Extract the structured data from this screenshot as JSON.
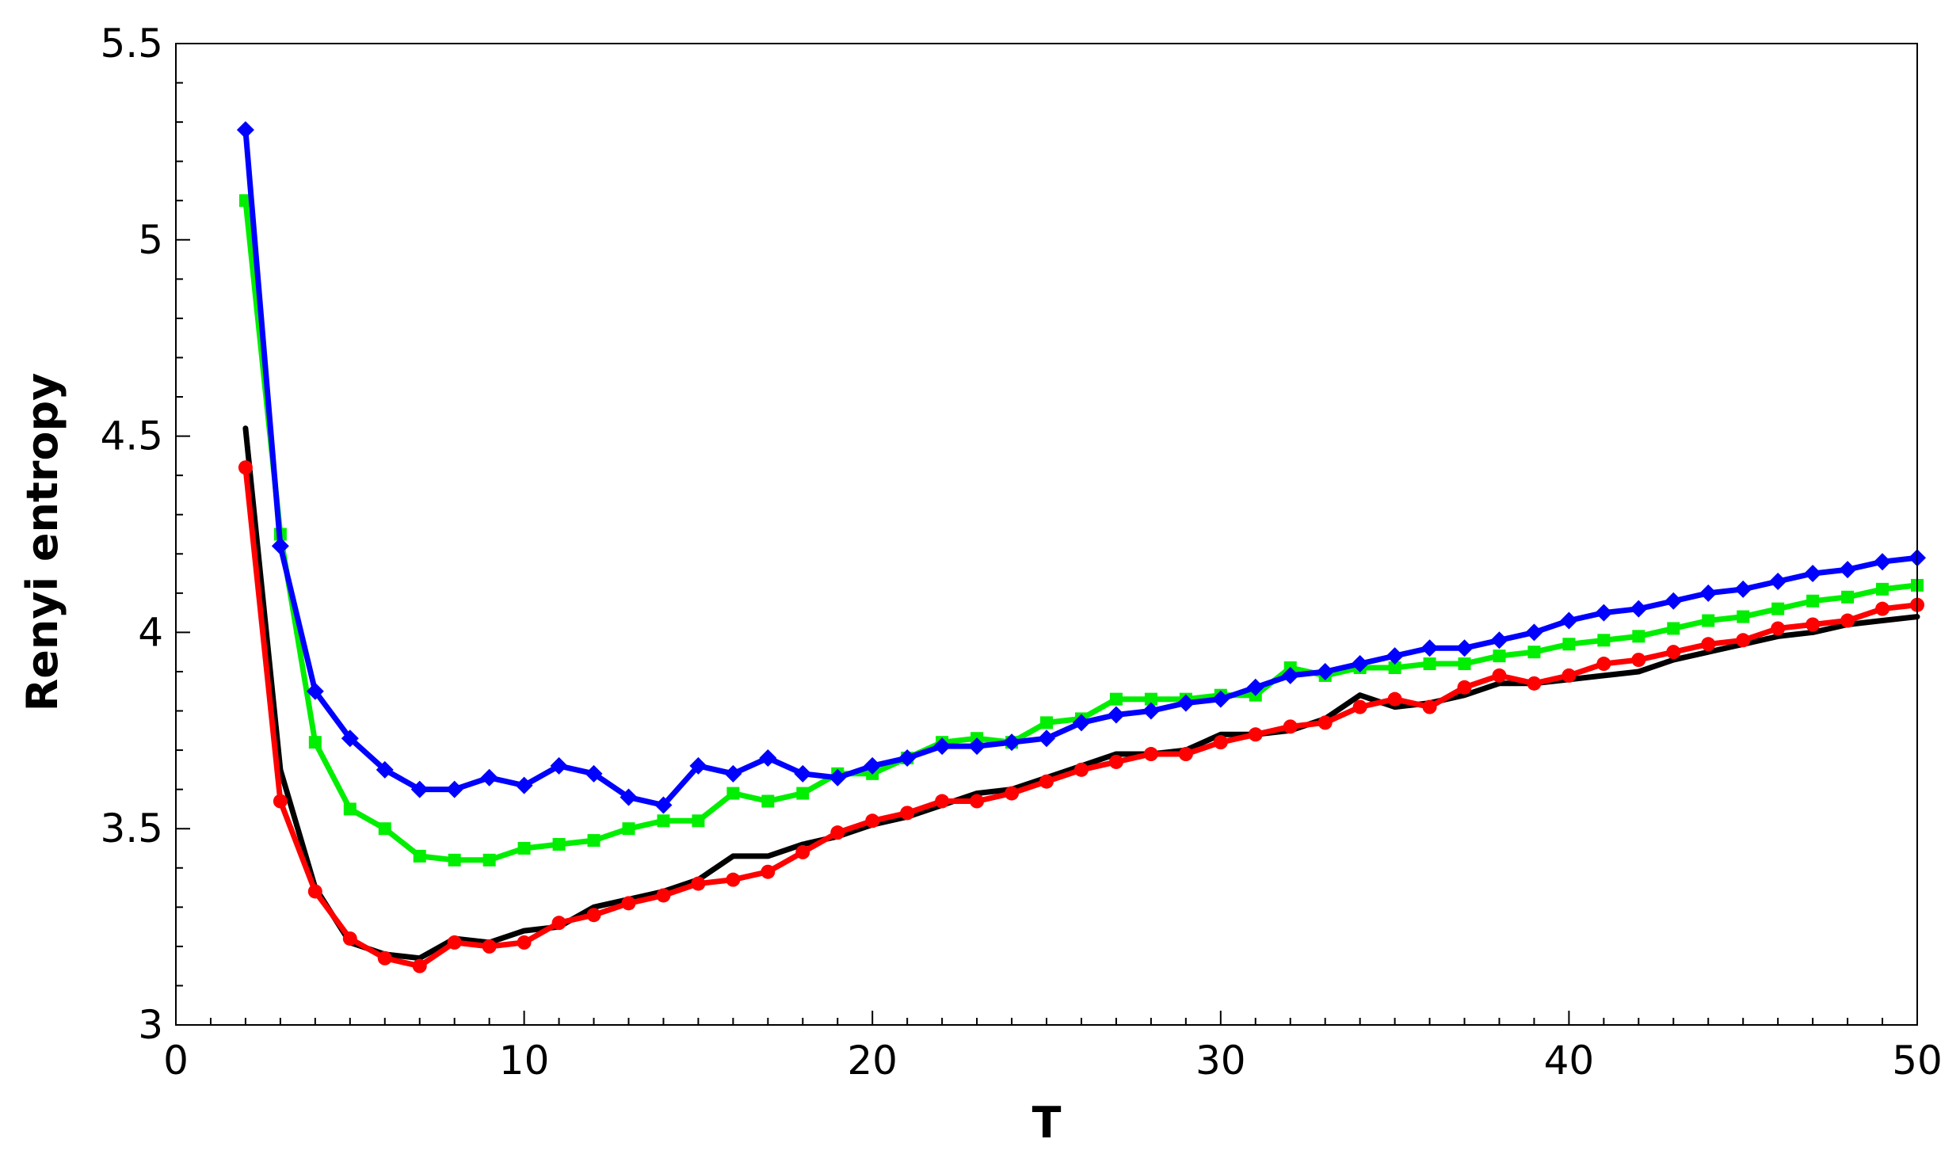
{
  "chart_data": {
    "type": "line",
    "title": "",
    "xlabel": "T",
    "ylabel": "Renyi entropy",
    "xlim": [
      0,
      50
    ],
    "ylim": [
      3,
      5.5
    ],
    "xticks": [
      0,
      10,
      20,
      30,
      40,
      50
    ],
    "yticks": [
      3,
      3.5,
      4,
      4.5,
      5,
      5.5
    ],
    "ytick_labels": [
      "3",
      "3.5",
      "4",
      "4.5",
      "5",
      "5.5"
    ],
    "grid": false,
    "legend": "none",
    "x": [
      2,
      3,
      4,
      5,
      6,
      7,
      8,
      9,
      10,
      11,
      12,
      13,
      14,
      15,
      16,
      17,
      18,
      19,
      20,
      21,
      22,
      23,
      24,
      25,
      26,
      27,
      28,
      29,
      30,
      31,
      32,
      33,
      34,
      35,
      36,
      37,
      38,
      39,
      40,
      41,
      42,
      43,
      44,
      45,
      46,
      47,
      48,
      49,
      50
    ],
    "series": [
      {
        "color": "#000000",
        "marker": "none",
        "values": [
          4.52,
          3.65,
          3.35,
          3.21,
          3.18,
          3.17,
          3.22,
          3.21,
          3.24,
          3.25,
          3.3,
          3.32,
          3.34,
          3.37,
          3.43,
          3.43,
          3.46,
          3.48,
          3.51,
          3.53,
          3.56,
          3.59,
          3.6,
          3.63,
          3.66,
          3.69,
          3.69,
          3.7,
          3.74,
          3.74,
          3.75,
          3.78,
          3.84,
          3.81,
          3.82,
          3.84,
          3.87,
          3.87,
          3.88,
          3.89,
          3.9,
          3.93,
          3.95,
          3.97,
          3.99,
          4.0,
          4.02,
          4.03,
          4.04
        ]
      },
      {
        "color": "#ff0000",
        "marker": "circle",
        "values": [
          4.42,
          3.57,
          3.34,
          3.22,
          3.17,
          3.15,
          3.21,
          3.2,
          3.21,
          3.26,
          3.28,
          3.31,
          3.33,
          3.36,
          3.37,
          3.39,
          3.44,
          3.49,
          3.52,
          3.54,
          3.57,
          3.57,
          3.59,
          3.62,
          3.65,
          3.67,
          3.69,
          3.69,
          3.72,
          3.74,
          3.76,
          3.77,
          3.81,
          3.83,
          3.81,
          3.86,
          3.89,
          3.87,
          3.89,
          3.92,
          3.93,
          3.95,
          3.97,
          3.98,
          4.01,
          4.02,
          4.03,
          4.06,
          4.07
        ]
      },
      {
        "color": "#00ee00",
        "marker": "square",
        "values": [
          5.1,
          4.25,
          3.72,
          3.55,
          3.5,
          3.43,
          3.42,
          3.42,
          3.45,
          3.46,
          3.47,
          3.5,
          3.52,
          3.52,
          3.59,
          3.57,
          3.59,
          3.64,
          3.64,
          3.68,
          3.72,
          3.73,
          3.72,
          3.77,
          3.78,
          3.83,
          3.83,
          3.83,
          3.84,
          3.84,
          3.91,
          3.89,
          3.91,
          3.91,
          3.92,
          3.92,
          3.94,
          3.95,
          3.97,
          3.98,
          3.99,
          4.01,
          4.03,
          4.04,
          4.06,
          4.08,
          4.09,
          4.11,
          4.12
        ]
      },
      {
        "color": "#0000ff",
        "marker": "diamond",
        "values": [
          5.28,
          4.22,
          3.85,
          3.73,
          3.65,
          3.6,
          3.6,
          3.63,
          3.61,
          3.66,
          3.64,
          3.58,
          3.56,
          3.66,
          3.64,
          3.68,
          3.64,
          3.63,
          3.66,
          3.68,
          3.71,
          3.71,
          3.72,
          3.73,
          3.77,
          3.79,
          3.8,
          3.82,
          3.83,
          3.86,
          3.89,
          3.9,
          3.92,
          3.94,
          3.96,
          3.96,
          3.98,
          4.0,
          4.03,
          4.05,
          4.06,
          4.08,
          4.1,
          4.11,
          4.13,
          4.15,
          4.16,
          4.18,
          4.19
        ]
      }
    ]
  }
}
